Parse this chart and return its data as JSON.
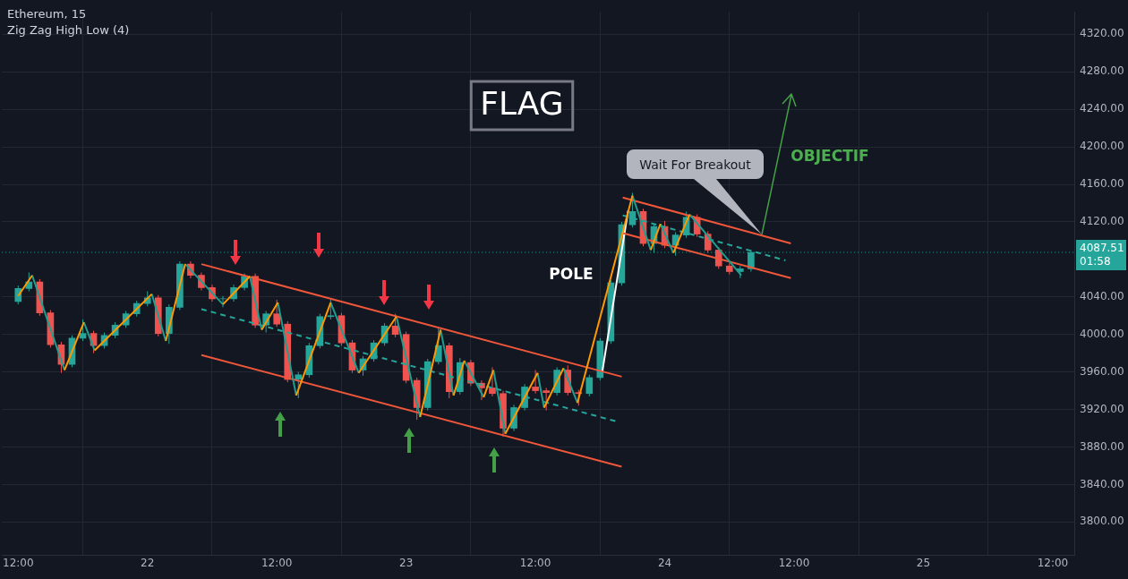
{
  "chart_data": {
    "type": "candlestick",
    "title": "Ethereum, 15",
    "subtitle": "Zig Zag High Low (4)",
    "x": [
      "--12-21T12:00",
      "--12-21T13:00",
      "--12-21T14:00",
      "--12-21T15:00",
      "--12-21T16:00",
      "--12-21T17:00",
      "--12-21T18:00",
      "--12-21T19:00",
      "--12-21T20:00",
      "--12-21T21:00",
      "--12-21T22:00",
      "--12-21T23:00",
      "--12-22T00:00",
      "--12-22T01:00",
      "--12-22T02:00",
      "--12-22T03:00",
      "--12-22T04:00",
      "--12-22T05:00",
      "--12-22T06:00",
      "--12-22T07:00",
      "--12-22T08:00",
      "--12-22T09:00",
      "--12-22T10:00",
      "--12-22T11:00",
      "--12-22T12:00",
      "--12-22T13:00",
      "--12-22T14:00",
      "--12-22T15:00",
      "--12-22T16:00",
      "--12-22T17:00",
      "--12-22T18:00",
      "--12-22T19:00",
      "--12-22T20:00",
      "--12-22T21:00",
      "--12-22T22:00",
      "--12-22T23:00",
      "--12-23T00:00",
      "--12-23T01:00",
      "--12-23T02:00",
      "--12-23T03:00",
      "--12-23T04:00",
      "--12-23T05:00",
      "--12-23T06:00",
      "--12-23T07:00",
      "--12-23T08:00",
      "--12-23T09:00",
      "--12-23T10:00",
      "--12-23T11:00",
      "--12-23T12:00",
      "--12-23T13:00",
      "--12-23T14:00",
      "--12-23T15:00",
      "--12-23T16:00",
      "--12-23T17:00",
      "--12-23T18:00",
      "--12-23T19:00",
      "--12-23T20:00",
      "--12-23T21:00",
      "--12-23T22:00",
      "--12-23T23:00",
      "--12-24T00:00",
      "--12-24T01:00",
      "--12-24T02:00",
      "--12-24T03:00",
      "--12-24T04:00",
      "--12-24T05:00",
      "--12-24T06:00",
      "--12-24T07:00",
      "--12-24T08:00"
    ],
    "ohlc": [
      [
        4035,
        4052,
        4032,
        4049
      ],
      [
        4049,
        4066,
        4046,
        4056
      ],
      [
        4056,
        4059,
        4020,
        4023
      ],
      [
        4023,
        4026,
        3986,
        3989
      ],
      [
        3989,
        3992,
        3959,
        3968
      ],
      [
        3968,
        3999,
        3965,
        3996
      ],
      [
        3996,
        4016,
        3993,
        4001
      ],
      [
        4001,
        4004,
        3980,
        3988
      ],
      [
        3988,
        4002,
        3985,
        3999
      ],
      [
        3999,
        4013,
        3996,
        4010
      ],
      [
        4010,
        4025,
        4007,
        4022
      ],
      [
        4022,
        4036,
        4019,
        4033
      ],
      [
        4033,
        4046,
        4030,
        4039
      ],
      [
        4039,
        4042,
        3998,
        4001
      ],
      [
        4001,
        4032,
        3990,
        4029
      ],
      [
        4029,
        4078,
        4026,
        4075
      ],
      [
        4075,
        4078,
        4060,
        4063
      ],
      [
        4063,
        4066,
        4047,
        4050
      ],
      [
        4050,
        4053,
        4035,
        4038
      ],
      [
        4038,
        4041,
        4029,
        4038
      ],
      [
        4038,
        4053,
        4035,
        4050
      ],
      [
        4050,
        4065,
        4047,
        4062
      ],
      [
        4062,
        4065,
        4007,
        4010
      ],
      [
        4010,
        4025,
        4002,
        4022
      ],
      [
        4022,
        4037,
        4008,
        4011
      ],
      [
        4011,
        4014,
        3949,
        3952
      ],
      [
        3952,
        3960,
        3932,
        3957
      ],
      [
        3957,
        3991,
        3954,
        3988
      ],
      [
        3988,
        4022,
        3985,
        4019
      ],
      [
        4019,
        4037,
        4016,
        4020
      ],
      [
        4020,
        4023,
        3988,
        3991
      ],
      [
        3991,
        3994,
        3959,
        3962
      ],
      [
        3962,
        3977,
        3956,
        3974
      ],
      [
        3974,
        3994,
        3971,
        3991
      ],
      [
        3991,
        4012,
        3988,
        4009
      ],
      [
        4009,
        4022,
        3997,
        4000
      ],
      [
        4000,
        4003,
        3948,
        3951
      ],
      [
        3951,
        3954,
        3909,
        3922
      ],
      [
        3922,
        3974,
        3919,
        3971
      ],
      [
        3971,
        4008,
        3968,
        3988
      ],
      [
        3988,
        3991,
        3932,
        3939
      ],
      [
        3939,
        3975,
        3936,
        3970
      ],
      [
        3970,
        3973,
        3945,
        3948
      ],
      [
        3948,
        3951,
        3930,
        3943
      ],
      [
        3943,
        3965,
        3934,
        3937
      ],
      [
        3937,
        3940,
        3891,
        3900
      ],
      [
        3900,
        3925,
        3897,
        3922
      ],
      [
        3922,
        3947,
        3919,
        3944
      ],
      [
        3944,
        3962,
        3937,
        3940
      ],
      [
        3940,
        3943,
        3919,
        3938
      ],
      [
        3938,
        3965,
        3935,
        3962
      ],
      [
        3962,
        3967,
        3935,
        3938
      ],
      [
        3938,
        3941,
        3924,
        3937
      ],
      [
        3937,
        3957,
        3934,
        3954
      ],
      [
        3954,
        3996,
        3951,
        3993
      ],
      [
        3993,
        4058,
        3990,
        4055
      ],
      [
        4055,
        4120,
        4052,
        4117
      ],
      [
        4117,
        4151,
        4114,
        4131
      ],
      [
        4131,
        4134,
        4094,
        4097
      ],
      [
        4097,
        4118,
        4087,
        4115
      ],
      [
        4115,
        4121,
        4092,
        4095
      ],
      [
        4095,
        4109,
        4084,
        4106
      ],
      [
        4106,
        4131,
        4103,
        4125
      ],
      [
        4125,
        4128,
        4104,
        4107
      ],
      [
        4107,
        4110,
        4087,
        4090
      ],
      [
        4090,
        4093,
        4070,
        4073
      ],
      [
        4073,
        4076,
        4064,
        4067
      ],
      [
        4067,
        4073,
        4060,
        4070
      ],
      [
        4070,
        4090,
        4067,
        4087.51
      ]
    ],
    "colors": [
      "#26a69a",
      "#26a69a",
      "#ef5350",
      "#ef5350",
      "#ef5350",
      "#26a69a",
      "#26a69a",
      "#ef5350",
      "#26a69a",
      "#26a69a",
      "#26a69a",
      "#26a69a",
      "#26a69a",
      "#ef5350",
      "#26a69a",
      "#26a69a",
      "#ef5350",
      "#ef5350",
      "#ef5350",
      "#26a69a",
      "#26a69a",
      "#26a69a",
      "#ef5350",
      "#26a69a",
      "#ef5350",
      "#ef5350",
      "#26a69a",
      "#26a69a",
      "#26a69a",
      "#26a69a",
      "#ef5350",
      "#ef5350",
      "#26a69a",
      "#26a69a",
      "#26a69a",
      "#ef5350",
      "#ef5350",
      "#ef5350",
      "#26a69a",
      "#26a69a",
      "#ef5350",
      "#26a69a",
      "#ef5350",
      "#ef5350",
      "#ef5350",
      "#ef5350",
      "#26a69a",
      "#26a69a",
      "#ef5350",
      "#ef5350",
      "#26a69a",
      "#ef5350",
      "#ef5350",
      "#26a69a",
      "#26a69a",
      "#26a69a",
      "#26a69a",
      "#26a69a",
      "#ef5350",
      "#26a69a",
      "#ef5350",
      "#26a69a",
      "#26a69a",
      "#ef5350",
      "#ef5350",
      "#ef5350",
      "#ef5350",
      "#26a69a",
      "#26a69a"
    ],
    "series": [
      {
        "type": "line",
        "color": "#ff9800",
        "x": [
          "--12-21T12:00",
          "--12-21T13:18",
          null,
          "--12-21T16:18",
          "--12-21T18:06",
          null,
          "--12-21T19:06",
          "--12-22T00:24",
          null,
          "--12-22T01:42",
          "--12-22T03:30",
          null,
          "--12-22T07:00",
          "--12-22T09:30",
          null,
          "--12-22T10:36",
          "--12-22T12:06",
          null,
          "--12-22T13:48",
          "--12-22T17:00",
          null,
          "--12-22T19:36",
          "--12-22T23:06",
          null,
          "--12-23T01:18",
          "--12-23T03:12",
          null,
          "--12-23T04:24",
          "--12-23T05:24",
          null,
          "--12-23T07:12",
          "--12-23T08:06",
          null,
          "--12-23T09:12",
          "--12-23T12:12",
          null,
          "--12-23T12:48",
          "--12-23T14:36",
          null,
          "--12-23T15:54",
          "--12-23T21:00",
          null,
          "--12-23T22:42",
          "--12-23T23:36",
          null,
          "--12-24T00:48",
          "--12-24T02:18"
        ],
        "values": [
          4041,
          4063,
          null,
          3962,
          4013,
          null,
          3983,
          4043,
          null,
          3993,
          4075,
          null,
          4032,
          4062,
          null,
          4005,
          4034,
          null,
          3935,
          4034,
          null,
          3959,
          4019,
          null,
          3912,
          4005,
          null,
          3935,
          3972,
          null,
          3933,
          3962,
          null,
          3894,
          3959,
          null,
          3922,
          3964,
          null,
          3927,
          4148,
          null,
          4090,
          4118,
          null,
          4087,
          4128
        ]
      },
      {
        "type": "line",
        "color": "#1e9e8e",
        "x": [
          "--12-21T13:18",
          "--12-21T16:18",
          null,
          "--12-21T18:06",
          "--12-21T19:06",
          null,
          "--12-22T00:24",
          "--12-22T01:42",
          null,
          "--12-22T03:30",
          "--12-22T07:00",
          null,
          "--12-22T09:30",
          "--12-22T10:36",
          null,
          "--12-22T12:06",
          "--12-22T13:48",
          null,
          "--12-22T17:00",
          "--12-22T19:36",
          null,
          "--12-22T23:06",
          "--12-23T01:18",
          null,
          "--12-23T03:12",
          "--12-23T04:24",
          null,
          "--12-23T05:24",
          "--12-23T07:12",
          null,
          "--12-23T08:06",
          "--12-23T09:12",
          null,
          "--12-23T12:12",
          "--12-23T12:48",
          null,
          "--12-23T14:36",
          "--12-23T15:54",
          null,
          "--12-23T21:00",
          "--12-23T22:42",
          null,
          "--12-23T23:36",
          "--12-24T00:48",
          null,
          "--12-24T02:18",
          "--12-24T07:06"
        ],
        "values": [
          4063,
          3962,
          null,
          4013,
          3983,
          null,
          4043,
          3993,
          null,
          4075,
          4032,
          null,
          4062,
          4005,
          null,
          4034,
          3935,
          null,
          4034,
          3959,
          null,
          4019,
          3912,
          null,
          4005,
          3935,
          null,
          3972,
          3933,
          null,
          3962,
          3894,
          null,
          3959,
          3922,
          null,
          3964,
          3927,
          null,
          4148,
          4090,
          null,
          4118,
          4087,
          null,
          4128,
          4063
        ]
      },
      {
        "type": "line",
        "color": "#f0573a",
        "x": [
          "--12-22T05:00",
          "--12-23T20:00"
        ],
        "values": [
          4075,
          3955
        ]
      },
      {
        "type": "line",
        "color": "#f0573a",
        "x": [
          "--12-22T05:00",
          "--12-23T20:00"
        ],
        "values": [
          3978,
          3859
        ]
      },
      {
        "type": "line",
        "color": "#26a69a",
        "line_style": "dashed",
        "x": [
          "--12-22T05:00",
          "--12-23T19:36"
        ],
        "values": [
          4027,
          3907
        ]
      },
      {
        "type": "line",
        "color": "#f0573a",
        "x": [
          "--12-23T20:06",
          "--12-24T11:42"
        ],
        "values": [
          4146,
          4097
        ]
      },
      {
        "type": "line",
        "color": "#f0573a",
        "x": [
          "--12-23T20:06",
          "--12-24T11:42"
        ],
        "values": [
          4108,
          4060
        ]
      },
      {
        "type": "line",
        "color": "#26a69a",
        "line_style": "dashed",
        "x": [
          "--12-23T20:06",
          "--12-24T11:12"
        ],
        "values": [
          4127,
          4079
        ]
      },
      {
        "type": "line",
        "color": "#ffffff",
        "x": [
          "--12-23T18:12",
          "--12-23T20:36"
        ],
        "values": [
          3960,
          4132
        ]
      }
    ],
    "xlim": [
      "--12-21T10:30",
      "--12-25T14:00"
    ],
    "xticks": [
      {
        "value": "--12-21T12:00",
        "label": "12:00"
      },
      {
        "value": "--12-22",
        "label": "22"
      },
      {
        "value": "--12-22T12:00",
        "label": "12:00"
      },
      {
        "value": "--12-23",
        "label": "23"
      },
      {
        "value": "--12-23T12:00",
        "label": "12:00"
      },
      {
        "value": "--12-24",
        "label": "24"
      },
      {
        "value": "--12-24T12:00",
        "label": "12:00"
      },
      {
        "value": "--12-25",
        "label": "25"
      },
      {
        "value": "--12-25T12:00",
        "label": "12:00"
      }
    ],
    "ylim": [
      3765,
      4344
    ],
    "yticks": [
      {
        "value": 3800,
        "label": "3800.00"
      },
      {
        "value": 3840,
        "label": "3840.00"
      },
      {
        "value": 3880,
        "label": "3880.00"
      },
      {
        "value": 3920,
        "label": "3920.00"
      },
      {
        "value": 3960,
        "label": "3960.00"
      },
      {
        "value": 4000,
        "label": "4000.00"
      },
      {
        "value": 4040,
        "label": "4040.00"
      },
      {
        "value": 4120,
        "label": "4120.00"
      },
      {
        "value": 4160,
        "label": "4160.00"
      },
      {
        "value": 4200,
        "label": "4200.00"
      },
      {
        "value": 4240,
        "label": "4240.00"
      },
      {
        "value": 4280,
        "label": "4280.00"
      },
      {
        "value": 4320,
        "label": "4320.00"
      }
    ],
    "ref_lines": [
      {
        "axis": "y",
        "value": 4087.51,
        "label": "4087.51",
        "color": "#26a69a",
        "line_style": "dotted"
      }
    ],
    "annotations": [
      "FLAG",
      "POLE",
      "Wait For Breakout",
      "OBJECTIF",
      "01:58"
    ],
    "grid": true,
    "legend": false,
    "marker": "none"
  }
}
